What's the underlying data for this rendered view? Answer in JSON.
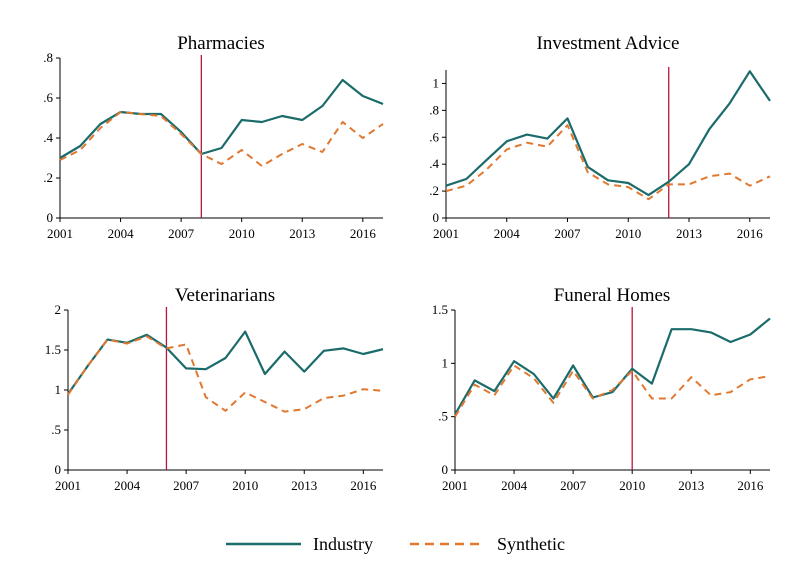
{
  "chart_data": [
    {
      "type": "line",
      "title": "Pharmacies",
      "xlabel": "",
      "ylabel": "",
      "x": [
        2001,
        2002,
        2003,
        2004,
        2005,
        2006,
        2007,
        2008,
        2009,
        2010,
        2011,
        2012,
        2013,
        2014,
        2015,
        2016,
        2017
      ],
      "xticks": [
        2001,
        2004,
        2007,
        2010,
        2013,
        2016
      ],
      "xlim": [
        2001,
        2017
      ],
      "yticks": [
        0,
        0.2,
        0.4,
        0.6,
        0.8
      ],
      "ytick_labels": [
        "0",
        ".2",
        ".4",
        ".6",
        ".8"
      ],
      "ylim": [
        0,
        0.8
      ],
      "treatment_year": 2008,
      "series": [
        {
          "name": "Industry",
          "values": [
            0.3,
            0.36,
            0.47,
            0.53,
            0.52,
            0.52,
            0.43,
            0.32,
            0.35,
            0.49,
            0.48,
            0.51,
            0.49,
            0.56,
            0.69,
            0.61,
            0.57
          ]
        },
        {
          "name": "Synthetic",
          "values": [
            0.29,
            0.34,
            0.45,
            0.53,
            0.52,
            0.51,
            0.42,
            0.32,
            0.27,
            0.34,
            0.26,
            0.32,
            0.37,
            0.33,
            0.48,
            0.4,
            0.47
          ]
        }
      ]
    },
    {
      "type": "line",
      "title": "Investment Advice",
      "xlabel": "",
      "ylabel": "",
      "x": [
        2001,
        2002,
        2003,
        2004,
        2005,
        2006,
        2007,
        2008,
        2009,
        2010,
        2011,
        2012,
        2013,
        2014,
        2015,
        2016,
        2017
      ],
      "xticks": [
        2001,
        2004,
        2007,
        2010,
        2013,
        2016
      ],
      "xlim": [
        2001,
        2017
      ],
      "yticks": [
        0,
        0.2,
        0.4,
        0.6,
        0.8,
        1
      ],
      "ytick_labels": [
        "0",
        ".2",
        ".4",
        ".6",
        ".8",
        "1"
      ],
      "ylim": [
        0,
        1.1
      ],
      "treatment_year": 2012,
      "series": [
        {
          "name": "Industry",
          "values": [
            0.24,
            0.29,
            0.43,
            0.57,
            0.62,
            0.59,
            0.74,
            0.38,
            0.28,
            0.26,
            0.17,
            0.27,
            0.4,
            0.66,
            0.85,
            1.09,
            0.87
          ]
        },
        {
          "name": "Synthetic",
          "values": [
            0.2,
            0.24,
            0.36,
            0.51,
            0.56,
            0.53,
            0.69,
            0.34,
            0.25,
            0.23,
            0.14,
            0.25,
            0.25,
            0.31,
            0.33,
            0.24,
            0.31
          ]
        }
      ]
    },
    {
      "type": "line",
      "title": "Veterinarians",
      "xlabel": "",
      "ylabel": "",
      "x": [
        2001,
        2002,
        2003,
        2004,
        2005,
        2006,
        2007,
        2008,
        2009,
        2010,
        2011,
        2012,
        2013,
        2014,
        2015,
        2016,
        2017
      ],
      "xticks": [
        2001,
        2004,
        2007,
        2010,
        2013,
        2016
      ],
      "xlim": [
        2001,
        2017
      ],
      "yticks": [
        0,
        0.5,
        1,
        1.5,
        2
      ],
      "ytick_labels": [
        "0",
        ".5",
        "1",
        "1.5",
        "2"
      ],
      "ylim": [
        0,
        2
      ],
      "treatment_year": 2006,
      "series": [
        {
          "name": "Industry",
          "values": [
            0.95,
            1.3,
            1.63,
            1.59,
            1.69,
            1.53,
            1.27,
            1.26,
            1.4,
            1.73,
            1.2,
            1.48,
            1.23,
            1.49,
            1.52,
            1.45,
            1.51
          ]
        },
        {
          "name": "Synthetic",
          "values": [
            0.94,
            1.3,
            1.63,
            1.58,
            1.67,
            1.52,
            1.57,
            0.91,
            0.74,
            0.97,
            0.85,
            0.73,
            0.76,
            0.9,
            0.93,
            1.01,
            0.99
          ]
        }
      ]
    },
    {
      "type": "line",
      "title": "Funeral Homes",
      "xlabel": "",
      "ylabel": "",
      "x": [
        2001,
        2002,
        2003,
        2004,
        2005,
        2006,
        2007,
        2008,
        2009,
        2010,
        2011,
        2012,
        2013,
        2014,
        2015,
        2016,
        2017
      ],
      "xticks": [
        2001,
        2004,
        2007,
        2010,
        2013,
        2016
      ],
      "xlim": [
        2001,
        2017
      ],
      "yticks": [
        0,
        0.5,
        1,
        1.5
      ],
      "ytick_labels": [
        "0",
        ".5",
        "1",
        "1.5"
      ],
      "ylim": [
        0,
        1.5
      ],
      "treatment_year": 2010,
      "series": [
        {
          "name": "Industry",
          "values": [
            0.52,
            0.84,
            0.74,
            1.02,
            0.9,
            0.67,
            0.98,
            0.68,
            0.73,
            0.95,
            0.81,
            1.32,
            1.32,
            1.29,
            1.2,
            1.27,
            1.42
          ]
        },
        {
          "name": "Synthetic",
          "values": [
            0.5,
            0.8,
            0.7,
            0.98,
            0.86,
            0.63,
            0.93,
            0.67,
            0.75,
            0.93,
            0.67,
            0.67,
            0.87,
            0.7,
            0.73,
            0.85,
            0.88
          ]
        }
      ]
    }
  ],
  "legend": {
    "industry_label": "Industry",
    "synthetic_label": "Synthetic"
  },
  "colors": {
    "industry": "#1b6b6b",
    "synthetic": "#e0782f",
    "treatment_line": "#b8143c",
    "axis": "#000000"
  }
}
